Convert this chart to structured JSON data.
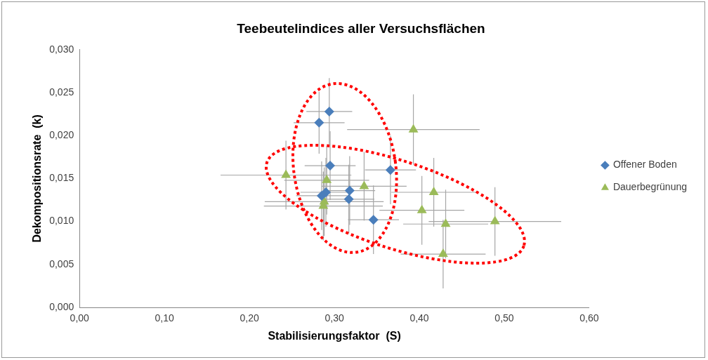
{
  "chart_data": {
    "type": "scatter",
    "title": "Teebeutelindices aller Versuchsflächen",
    "xlabel": "Stabilisierungsfaktor  (S)",
    "ylabel": "Dekompositionsrate  (k)",
    "xlim": [
      0,
      0.6
    ],
    "xticks": [
      {
        "value": 0,
        "label": "0,00"
      },
      {
        "value": 0.1,
        "label": "0,10"
      },
      {
        "value": 0.2,
        "label": "0,20"
      },
      {
        "value": 0.3,
        "label": "0,30"
      },
      {
        "value": 0.4,
        "label": "0,40"
      },
      {
        "value": 0.5,
        "label": "0,50"
      },
      {
        "value": 0.6,
        "label": "0,60"
      }
    ],
    "ylim": [
      0,
      0.03
    ],
    "yticks": [
      {
        "value": 0,
        "label": "0,000"
      },
      {
        "value": 0.005,
        "label": "0,005"
      },
      {
        "value": 0.01,
        "label": "0,010"
      },
      {
        "value": 0.015,
        "label": "0,015"
      },
      {
        "value": 0.02,
        "label": "0,020"
      },
      {
        "value": 0.025,
        "label": "0,025"
      },
      {
        "value": 0.03,
        "label": "0,030"
      }
    ],
    "grid": false,
    "legend": "right",
    "series": [
      {
        "name": "Offener Boden",
        "color": "#4a7ebb",
        "marker": "diamond",
        "x": [
          0.294,
          0.282,
          0.295,
          0.366,
          0.285,
          0.29,
          0.318,
          0.317,
          0.346
        ],
        "values": [
          0.0228,
          0.0215,
          0.0165,
          0.016,
          0.013,
          0.0134,
          0.0136,
          0.0126,
          0.0102
        ],
        "errors": [
          0.0039,
          0.0036,
          0.004,
          0.004,
          0.004,
          0.004,
          0.004,
          0.004,
          0.004
        ],
        "xerrors": [
          0.027,
          0.03,
          0.03,
          0.03,
          0.03,
          0.03,
          0.03,
          0.03,
          0.03
        ]
      },
      {
        "name": "Dauerbegrünung",
        "color": "#9bbb59",
        "marker": "triangle",
        "x": [
          0.243,
          0.291,
          0.287,
          0.288,
          0.335,
          0.393,
          0.417,
          0.403,
          0.431,
          0.489,
          0.428
        ],
        "values": [
          0.0154,
          0.0148,
          0.0118,
          0.0123,
          0.0141,
          0.0207,
          0.0134,
          0.0113,
          0.0097,
          0.01,
          0.0062
        ],
        "errors": [
          0.004,
          0.004,
          0.004,
          0.004,
          0.004,
          0.0041,
          0.004,
          0.004,
          0.004,
          0.004,
          0.004
        ],
        "xerrors": [
          0.077,
          0.05,
          0.07,
          0.07,
          0.05,
          0.078,
          0.05,
          0.05,
          0.05,
          0.078,
          0.05
        ]
      }
    ]
  }
}
